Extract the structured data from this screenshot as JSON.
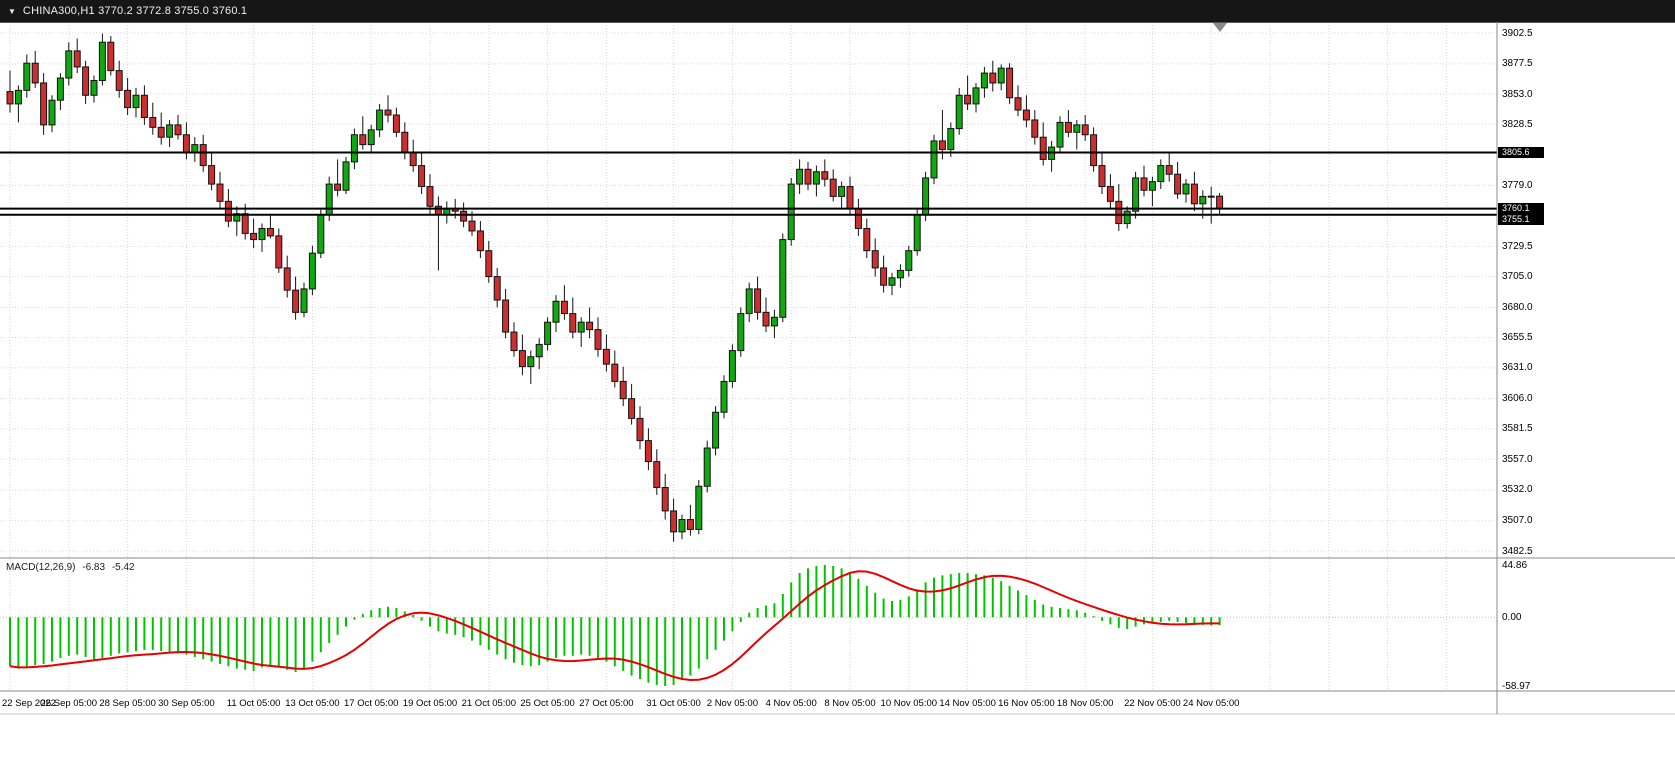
{
  "titlebar": {
    "title": "CHINA300,H1 3770.2 3772.8 3755.0 3760.1",
    "symbol": "CHINA300",
    "timeframe": "H1",
    "open": "3770.2",
    "high": "3772.8",
    "low": "3755.0",
    "close": "3760.1"
  },
  "price_axis": {
    "ticks": [
      "3902.5",
      "3877.5",
      "3853.0",
      "3828.5",
      "3779.0",
      "3729.5",
      "3705.0",
      "3680.0",
      "3655.5",
      "3631.0",
      "3606.0",
      "3581.5",
      "3557.0",
      "3532.0",
      "3507.0",
      "3482.5"
    ],
    "badges": [
      {
        "label": "3805.6",
        "price": 3805.6
      },
      {
        "label": "3760.1",
        "price": 3760.1
      },
      {
        "label": "3755.1",
        "price": 3755.1
      }
    ]
  },
  "time_axis": {
    "labels": [
      {
        "text": "22 Sep 2022",
        "candle": 0
      },
      {
        "text": "26 Sep 05:00",
        "candle": 7
      },
      {
        "text": "28 Sep 05:00",
        "candle": 14
      },
      {
        "text": "30 Sep 05:00",
        "candle": 21
      },
      {
        "text": "11 Oct 05:00",
        "candle": 29
      },
      {
        "text": "13 Oct 05:00",
        "candle": 36
      },
      {
        "text": "17 Oct 05:00",
        "candle": 43
      },
      {
        "text": "19 Oct 05:00",
        "candle": 50
      },
      {
        "text": "21 Oct 05:00",
        "candle": 57
      },
      {
        "text": "25 Oct 05:00",
        "candle": 64
      },
      {
        "text": "27 Oct 05:00",
        "candle": 71
      },
      {
        "text": "31 Oct 05:00",
        "candle": 79
      },
      {
        "text": "2 Nov 05:00",
        "candle": 86
      },
      {
        "text": "4 Nov 05:00",
        "candle": 93
      },
      {
        "text": "8 Nov 05:00",
        "candle": 100
      },
      {
        "text": "10 Nov 05:00",
        "candle": 107
      },
      {
        "text": "14 Nov 05:00",
        "candle": 114
      },
      {
        "text": "16 Nov 05:00",
        "candle": 121
      },
      {
        "text": "18 Nov 05:00",
        "candle": 128
      },
      {
        "text": "22 Nov 05:00",
        "candle": 136
      },
      {
        "text": "24 Nov 05:00",
        "candle": 143
      }
    ]
  },
  "hlines": [
    {
      "price": 3805.6
    },
    {
      "price": 3760.1
    },
    {
      "price": 3755.1
    }
  ],
  "macd": {
    "label": "MACD(12,26,9)",
    "value": "-6.83",
    "signal_value": "-5.42",
    "axis": [
      "44.86",
      "0.00",
      "-58.97"
    ]
  },
  "chart_data": {
    "type": "candlestick+macd",
    "title": "CHINA300 H1",
    "price_range": [
      3482.5,
      3902.5
    ],
    "macd_range": [
      -58.97,
      44.86
    ],
    "colors": {
      "up": "#0fa80f",
      "down": "#cc2f2f",
      "outline": "#111111",
      "macd_hist": "#00c400",
      "signal": "#e60000",
      "grid": "#d9d9d9",
      "hline": "#000000"
    },
    "ohlc": [
      [
        3855,
        3872,
        3838,
        3845
      ],
      [
        3845,
        3860,
        3830,
        3856
      ],
      [
        3856,
        3885,
        3850,
        3878
      ],
      [
        3878,
        3888,
        3858,
        3862
      ],
      [
        3862,
        3870,
        3820,
        3828
      ],
      [
        3828,
        3852,
        3822,
        3848
      ],
      [
        3848,
        3870,
        3840,
        3866
      ],
      [
        3866,
        3895,
        3860,
        3888
      ],
      [
        3888,
        3898,
        3870,
        3875
      ],
      [
        3875,
        3880,
        3845,
        3852
      ],
      [
        3852,
        3868,
        3846,
        3864
      ],
      [
        3864,
        3902,
        3860,
        3895
      ],
      [
        3895,
        3900,
        3868,
        3872
      ],
      [
        3872,
        3880,
        3850,
        3856
      ],
      [
        3856,
        3866,
        3836,
        3842
      ],
      [
        3842,
        3858,
        3834,
        3852
      ],
      [
        3852,
        3860,
        3828,
        3834
      ],
      [
        3834,
        3846,
        3820,
        3826
      ],
      [
        3826,
        3838,
        3812,
        3818
      ],
      [
        3818,
        3832,
        3810,
        3828
      ],
      [
        3828,
        3836,
        3816,
        3820
      ],
      [
        3820,
        3830,
        3800,
        3806
      ],
      [
        3806,
        3818,
        3798,
        3812
      ],
      [
        3812,
        3820,
        3790,
        3795
      ],
      [
        3795,
        3805,
        3775,
        3780
      ],
      [
        3780,
        3790,
        3760,
        3766
      ],
      [
        3766,
        3776,
        3745,
        3750
      ],
      [
        3750,
        3762,
        3738,
        3756
      ],
      [
        3756,
        3764,
        3735,
        3740
      ],
      [
        3740,
        3752,
        3728,
        3735
      ],
      [
        3735,
        3748,
        3725,
        3744
      ],
      [
        3744,
        3756,
        3736,
        3738
      ],
      [
        3738,
        3744,
        3708,
        3712
      ],
      [
        3712,
        3722,
        3688,
        3694
      ],
      [
        3694,
        3705,
        3670,
        3676
      ],
      [
        3676,
        3700,
        3672,
        3695
      ],
      [
        3695,
        3730,
        3690,
        3724
      ],
      [
        3724,
        3760,
        3720,
        3755
      ],
      [
        3755,
        3786,
        3750,
        3780
      ],
      [
        3780,
        3800,
        3770,
        3775
      ],
      [
        3775,
        3802,
        3772,
        3798
      ],
      [
        3798,
        3825,
        3792,
        3820
      ],
      [
        3820,
        3835,
        3808,
        3812
      ],
      [
        3812,
        3828,
        3806,
        3824
      ],
      [
        3824,
        3845,
        3818,
        3840
      ],
      [
        3840,
        3852,
        3830,
        3836
      ],
      [
        3836,
        3842,
        3818,
        3822
      ],
      [
        3822,
        3830,
        3800,
        3806
      ],
      [
        3806,
        3816,
        3790,
        3795
      ],
      [
        3795,
        3805,
        3772,
        3778
      ],
      [
        3778,
        3788,
        3755,
        3762
      ],
      [
        3762,
        3770,
        3710,
        3755
      ],
      [
        3755,
        3766,
        3748,
        3760
      ],
      [
        3760,
        3768,
        3752,
        3758
      ],
      [
        3758,
        3765,
        3745,
        3750
      ],
      [
        3750,
        3758,
        3738,
        3742
      ],
      [
        3742,
        3750,
        3720,
        3726
      ],
      [
        3726,
        3734,
        3700,
        3705
      ],
      [
        3705,
        3712,
        3680,
        3686
      ],
      [
        3686,
        3695,
        3655,
        3660
      ],
      [
        3660,
        3668,
        3640,
        3645
      ],
      [
        3645,
        3658,
        3625,
        3632
      ],
      [
        3632,
        3645,
        3618,
        3640
      ],
      [
        3640,
        3655,
        3630,
        3650
      ],
      [
        3650,
        3672,
        3645,
        3668
      ],
      [
        3668,
        3690,
        3660,
        3685
      ],
      [
        3685,
        3698,
        3670,
        3675
      ],
      [
        3675,
        3688,
        3655,
        3660
      ],
      [
        3660,
        3672,
        3648,
        3668
      ],
      [
        3668,
        3680,
        3655,
        3662
      ],
      [
        3662,
        3672,
        3640,
        3646
      ],
      [
        3646,
        3658,
        3628,
        3634
      ],
      [
        3634,
        3645,
        3615,
        3620
      ],
      [
        3620,
        3632,
        3600,
        3606
      ],
      [
        3606,
        3618,
        3585,
        3590
      ],
      [
        3590,
        3600,
        3565,
        3572
      ],
      [
        3572,
        3582,
        3548,
        3555
      ],
      [
        3555,
        3565,
        3528,
        3534
      ],
      [
        3534,
        3545,
        3508,
        3515
      ],
      [
        3515,
        3525,
        3490,
        3498
      ],
      [
        3498,
        3512,
        3492,
        3508
      ],
      [
        3508,
        3520,
        3495,
        3500
      ],
      [
        3500,
        3540,
        3496,
        3535
      ],
      [
        3535,
        3572,
        3530,
        3566
      ],
      [
        3566,
        3600,
        3560,
        3595
      ],
      [
        3595,
        3625,
        3590,
        3620
      ],
      [
        3620,
        3650,
        3615,
        3645
      ],
      [
        3645,
        3680,
        3640,
        3675
      ],
      [
        3675,
        3700,
        3668,
        3695
      ],
      [
        3695,
        3705,
        3670,
        3676
      ],
      [
        3676,
        3688,
        3660,
        3665
      ],
      [
        3665,
        3678,
        3655,
        3672
      ],
      [
        3672,
        3740,
        3668,
        3735
      ],
      [
        3735,
        3785,
        3730,
        3780
      ],
      [
        3780,
        3800,
        3772,
        3792
      ],
      [
        3792,
        3798,
        3775,
        3780
      ],
      [
        3780,
        3795,
        3770,
        3790
      ],
      [
        3790,
        3800,
        3778,
        3784
      ],
      [
        3784,
        3792,
        3766,
        3770
      ],
      [
        3770,
        3782,
        3760,
        3778
      ],
      [
        3778,
        3786,
        3755,
        3760
      ],
      [
        3760,
        3768,
        3738,
        3744
      ],
      [
        3744,
        3752,
        3720,
        3726
      ],
      [
        3726,
        3736,
        3705,
        3712
      ],
      [
        3712,
        3722,
        3692,
        3698
      ],
      [
        3698,
        3708,
        3690,
        3704
      ],
      [
        3704,
        3715,
        3696,
        3710
      ],
      [
        3710,
        3730,
        3705,
        3726
      ],
      [
        3726,
        3760,
        3722,
        3755
      ],
      [
        3755,
        3790,
        3750,
        3785
      ],
      [
        3785,
        3820,
        3780,
        3815
      ],
      [
        3815,
        3840,
        3800,
        3808
      ],
      [
        3808,
        3830,
        3802,
        3825
      ],
      [
        3825,
        3858,
        3820,
        3852
      ],
      [
        3852,
        3868,
        3840,
        3845
      ],
      [
        3845,
        3862,
        3838,
        3858
      ],
      [
        3858,
        3875,
        3850,
        3870
      ],
      [
        3870,
        3880,
        3855,
        3862
      ],
      [
        3862,
        3877,
        3856,
        3874
      ],
      [
        3874,
        3878,
        3845,
        3850
      ],
      [
        3850,
        3860,
        3835,
        3840
      ],
      [
        3840,
        3852,
        3826,
        3832
      ],
      [
        3832,
        3840,
        3812,
        3818
      ],
      [
        3818,
        3830,
        3795,
        3800
      ],
      [
        3800,
        3815,
        3790,
        3810
      ],
      [
        3810,
        3835,
        3805,
        3830
      ],
      [
        3830,
        3840,
        3818,
        3822
      ],
      [
        3822,
        3832,
        3808,
        3828
      ],
      [
        3828,
        3836,
        3815,
        3820
      ],
      [
        3820,
        3826,
        3790,
        3795
      ],
      [
        3795,
        3805,
        3772,
        3778
      ],
      [
        3778,
        3788,
        3760,
        3766
      ],
      [
        3766,
        3780,
        3742,
        3748
      ],
      [
        3748,
        3762,
        3744,
        3758
      ],
      [
        3758,
        3790,
        3752,
        3785
      ],
      [
        3785,
        3795,
        3770,
        3775
      ],
      [
        3775,
        3786,
        3762,
        3782
      ],
      [
        3782,
        3800,
        3776,
        3795
      ],
      [
        3795,
        3805,
        3782,
        3788
      ],
      [
        3788,
        3798,
        3768,
        3772
      ],
      [
        3772,
        3784,
        3765,
        3780
      ],
      [
        3780,
        3790,
        3758,
        3764
      ],
      [
        3764,
        3775,
        3752,
        3770
      ],
      [
        3770,
        3778,
        3748,
        3770.2
      ],
      [
        3770.2,
        3772.8,
        3755,
        3760.1
      ]
    ],
    "macd_histogram": [
      -42,
      -44,
      -43,
      -41,
      -40,
      -38,
      -35,
      -33,
      -32,
      -34,
      -36,
      -35,
      -33,
      -31,
      -30,
      -29,
      -28,
      -28,
      -29,
      -30,
      -31,
      -32,
      -34,
      -36,
      -38,
      -40,
      -42,
      -44,
      -45,
      -46,
      -43,
      -41,
      -43,
      -45,
      -47,
      -44,
      -38,
      -30,
      -22,
      -15,
      -8,
      -2,
      3,
      6,
      8,
      9,
      8,
      5,
      2,
      -3,
      -8,
      -12,
      -14,
      -15,
      -17,
      -20,
      -24,
      -28,
      -32,
      -36,
      -39,
      -41,
      -42,
      -41,
      -38,
      -35,
      -33,
      -33,
      -32,
      -33,
      -35,
      -38,
      -42,
      -46,
      -50,
      -53,
      -56,
      -58,
      -58.97,
      -58,
      -54,
      -50,
      -44,
      -36,
      -28,
      -20,
      -12,
      -4,
      4,
      8,
      10,
      12,
      20,
      30,
      38,
      42,
      44,
      44.86,
      44,
      42,
      38,
      33,
      27,
      21,
      16,
      14,
      15,
      18,
      24,
      30,
      34,
      36,
      37,
      38,
      38,
      37,
      36,
      34,
      31,
      27,
      23,
      19,
      15,
      11,
      9,
      8,
      7,
      6,
      4,
      1,
      -3,
      -6,
      -9,
      -10,
      -8,
      -6,
      -5,
      -4,
      -3,
      -4,
      -5,
      -6,
      -6.5,
      -7,
      -6.83
    ]
  }
}
